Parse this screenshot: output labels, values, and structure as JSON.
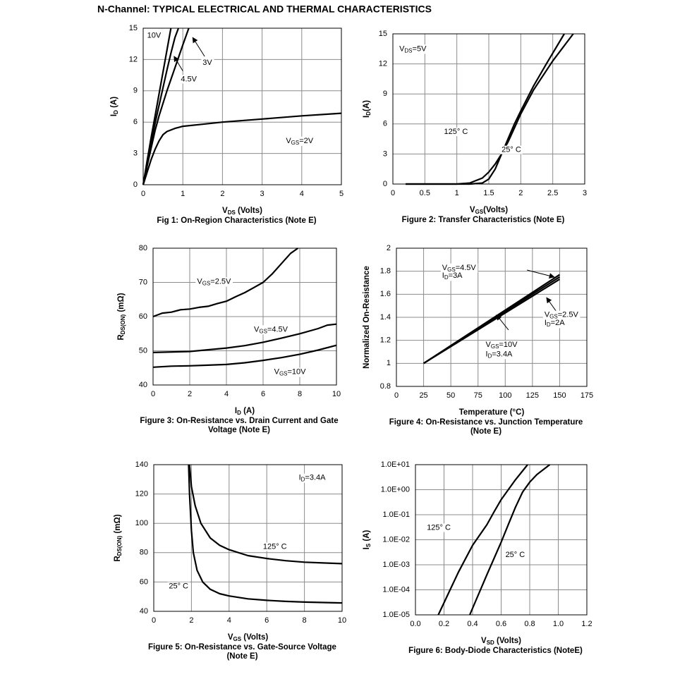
{
  "title": "N-Channel: TYPICAL ELECTRICAL AND THERMAL CHARACTERISTICS",
  "chart_data": [
    {
      "type": "line",
      "title": [
        "Fig 1: On-Region Characteristics (Note E)"
      ],
      "xlabel": [
        "V",
        "DS",
        " (Volts)"
      ],
      "ylabel": [
        "I",
        "D",
        " (A)"
      ],
      "xlim": [
        0,
        5
      ],
      "xticks": [
        0,
        1,
        2,
        3,
        4,
        5
      ],
      "ylim": [
        0,
        15
      ],
      "yticks": [
        0,
        3,
        6,
        9,
        12,
        15
      ],
      "grid": true,
      "series": [
        {
          "color": "#000000",
          "x": [
            0,
            0.1,
            0.2,
            0.3,
            0.4,
            0.5,
            0.6,
            0.7
          ],
          "values": [
            0,
            2.3,
            4.5,
            6.6,
            8.7,
            10.8,
            12.9,
            15
          ]
        },
        {
          "color": "#000000",
          "x": [
            0,
            0.1,
            0.2,
            0.3,
            0.4,
            0.5,
            0.6,
            0.7,
            0.8,
            0.89
          ],
          "values": [
            0,
            2,
            4,
            5.9,
            7.6,
            9.3,
            11,
            12.6,
            14.1,
            15
          ]
        },
        {
          "color": "#000000",
          "x": [
            0,
            0.1,
            0.2,
            0.3,
            0.4,
            0.6,
            0.8,
            1.0,
            1.15
          ],
          "values": [
            0,
            1.8,
            3.5,
            5.2,
            6.6,
            9,
            11.2,
            13.4,
            15
          ]
        },
        {
          "color": "#000000",
          "x": [
            0,
            0.1,
            0.2,
            0.3,
            0.4,
            0.5,
            0.6,
            0.8,
            1,
            1.5,
            2,
            3,
            4,
            5
          ],
          "values": [
            0,
            1.2,
            2.4,
            3.4,
            4.2,
            4.8,
            5.1,
            5.4,
            5.6,
            5.8,
            6.0,
            6.3,
            6.6,
            6.85
          ]
        }
      ],
      "annotations": [
        [
          "10V"
        ],
        [
          "3V"
        ],
        [
          "4.5V"
        ],
        [
          "V",
          "GS",
          "=2V"
        ]
      ]
    },
    {
      "type": "line",
      "title": [
        "Figure 2: Transfer Characteristics (Note E)"
      ],
      "xlabel": [
        "V",
        "GS",
        "(Volts)"
      ],
      "ylabel": [
        "I",
        "D",
        "(A)"
      ],
      "xlim": [
        0,
        3
      ],
      "xticks": [
        0,
        0.5,
        1,
        1.5,
        2,
        2.5,
        3
      ],
      "ylim": [
        0,
        15
      ],
      "yticks": [
        0,
        3,
        6,
        9,
        12,
        15
      ],
      "grid": true,
      "series": [
        {
          "color": "#000000",
          "x": [
            0.2,
            1.0,
            1.2,
            1.4,
            1.5,
            1.6,
            1.7,
            1.8,
            1.9,
            2.0,
            2.2,
            2.5,
            2.82
          ],
          "values": [
            0,
            0,
            0.1,
            0.6,
            1.2,
            2,
            3,
            4.2,
            5.6,
            7,
            9.4,
            12.3,
            15
          ]
        },
        {
          "color": "#000000",
          "x": [
            0.2,
            1.2,
            1.4,
            1.5,
            1.6,
            1.7,
            1.8,
            1.9,
            2.0,
            2.2,
            2.4,
            2.68
          ],
          "values": [
            0,
            0,
            0.1,
            0.5,
            1.5,
            3,
            4.5,
            6,
            7.3,
            9.8,
            12,
            15
          ]
        }
      ],
      "annotations": [
        [
          "V",
          "DS",
          "=5V"
        ],
        [
          "125° C"
        ],
        [
          "25° C"
        ]
      ]
    },
    {
      "type": "line",
      "title": [
        "Figure 3: On-Resistance vs. Drain Current and Gate",
        "Voltage (Note E)"
      ],
      "xlabel": [
        "I",
        "D",
        " (A)"
      ],
      "ylabel": [
        "R",
        "DS(ON)",
        " (mΩ)"
      ],
      "xlim": [
        0,
        10
      ],
      "xticks": [
        0,
        2,
        4,
        6,
        8,
        10
      ],
      "ylim": [
        40,
        80
      ],
      "yticks": [
        40,
        50,
        60,
        70,
        80
      ],
      "grid": true,
      "series": [
        {
          "color": "#000000",
          "x": [
            0,
            0.5,
            1,
            1.5,
            2,
            2.5,
            3,
            3.5,
            4,
            4.5,
            5,
            5.5,
            6,
            6.5,
            7,
            7.5,
            7.9
          ],
          "values": [
            60,
            61,
            61.3,
            62,
            62.2,
            62.7,
            63,
            63.8,
            64.5,
            65.8,
            67,
            68.5,
            70,
            72.5,
            75.5,
            78.5,
            80
          ]
        },
        {
          "color": "#000000",
          "x": [
            0,
            2,
            4,
            5,
            6,
            7,
            8,
            9,
            9.5,
            10
          ],
          "values": [
            49.5,
            49.8,
            50.8,
            51.5,
            52.5,
            53.7,
            55,
            56.5,
            57.5,
            57.8
          ]
        },
        {
          "color": "#000000",
          "x": [
            0,
            1,
            2,
            3,
            4,
            5,
            6,
            7,
            8,
            9,
            10
          ],
          "values": [
            45.2,
            45.5,
            45.6,
            45.8,
            46.0,
            46.5,
            47.2,
            48,
            49,
            50.2,
            51.6
          ]
        }
      ],
      "annotations": [
        [
          "V",
          "GS",
          "=2.5V"
        ],
        [
          "V",
          "GS",
          "=4.5V"
        ],
        [
          "V",
          "GS",
          "=10V"
        ]
      ]
    },
    {
      "type": "line",
      "title": [
        "Figure 4: On-Resistance vs. Junction Temperature",
        "(Note E)"
      ],
      "xlabel": [
        "Temperature (°C)"
      ],
      "ylabel": [
        "Normalized On-Resistance"
      ],
      "xlim": [
        0,
        175
      ],
      "xticks": [
        0,
        25,
        50,
        75,
        100,
        125,
        150,
        175
      ],
      "ylim": [
        0.8,
        2
      ],
      "yticks": [
        0.8,
        1,
        1.2,
        1.4,
        1.6,
        1.8,
        2
      ],
      "grid": true,
      "series": [
        {
          "color": "#000000",
          "x": [
            25,
            150
          ],
          "values": [
            1,
            1.77
          ]
        },
        {
          "color": "#000000",
          "x": [
            25,
            150
          ],
          "values": [
            1,
            1.75
          ]
        },
        {
          "color": "#000000",
          "x": [
            25,
            150
          ],
          "values": [
            1,
            1.73
          ]
        }
      ],
      "annotations": [
        [
          "V",
          "GS",
          "=4.5V"
        ],
        [
          "I",
          "D",
          "=3A"
        ],
        [
          "V",
          "GS",
          "=2.5V"
        ],
        [
          "I",
          "D",
          "=2A"
        ],
        [
          "V",
          "GS",
          "=10V"
        ],
        [
          "I",
          "D",
          "=3.4A"
        ]
      ]
    },
    {
      "type": "line",
      "title": [
        "Figure 5: On-Resistance vs. Gate-Source Voltage",
        "(Note E)"
      ],
      "xlabel": [
        "V",
        "GS",
        " (Volts)"
      ],
      "ylabel": [
        "R",
        "DS(ON)",
        " (mΩ)"
      ],
      "xlim": [
        0,
        10
      ],
      "xticks": [
        0,
        2,
        4,
        6,
        8,
        10
      ],
      "ylim": [
        40,
        140
      ],
      "yticks": [
        40,
        60,
        80,
        100,
        120,
        140
      ],
      "grid": true,
      "series": [
        {
          "color": "#000000",
          "x": [
            1.9,
            2,
            2.2,
            2.5,
            3,
            3.5,
            4,
            5,
            6,
            7,
            8,
            9,
            10
          ],
          "values": [
            140,
            125,
            112,
            100,
            90,
            85,
            82,
            78,
            76,
            74.5,
            73.5,
            73,
            72.5
          ]
        },
        {
          "color": "#000000",
          "x": [
            1.85,
            1.9,
            2,
            2.1,
            2.3,
            2.6,
            3,
            3.5,
            4,
            5,
            6,
            7,
            8,
            9,
            10
          ],
          "values": [
            140,
            120,
            95,
            80,
            68,
            60,
            55,
            52,
            50.5,
            48.5,
            47.5,
            46.8,
            46.3,
            46,
            45.7
          ]
        }
      ],
      "annotations": [
        [
          "I",
          "D",
          "=3.4A"
        ],
        [
          "125° C"
        ],
        [
          "25° C"
        ]
      ]
    },
    {
      "type": "line",
      "title": [
        "Figure 6: Body-Diode Characteristics (NoteE)"
      ],
      "xlabel": [
        "V",
        "SD",
        " (Volts)"
      ],
      "ylabel": [
        "I",
        "S",
        " (A)"
      ],
      "xlim": [
        0,
        1.2
      ],
      "xticks": [
        {
          "value": 0,
          "label": "0.0"
        },
        0.2,
        0.4,
        0.6,
        0.8,
        {
          "value": 1,
          "label": "1.0"
        },
        1.2
      ],
      "ylim": [
        1e-05,
        10
      ],
      "ylog": true,
      "yticks": [
        {
          "value": 1e-05,
          "label": "1.0E-05"
        },
        {
          "value": 0.0001,
          "label": "1.0E-04"
        },
        {
          "value": 0.001,
          "label": "1.0E-03"
        },
        {
          "value": 0.01,
          "label": "1.0E-02"
        },
        {
          "value": 0.1,
          "label": "1.0E-01"
        },
        {
          "value": 1,
          "label": "1.0E+00"
        },
        {
          "value": 10,
          "label": "1.0E+01"
        }
      ],
      "grid": true,
      "series": [
        {
          "color": "#000000",
          "x": [
            0.16,
            0.3,
            0.4,
            0.5,
            0.55,
            0.6,
            0.65,
            0.7,
            0.785
          ],
          "values": [
            1e-05,
            0.0005,
            0.006,
            0.04,
            0.13,
            0.4,
            1,
            2.5,
            10
          ]
        },
        {
          "color": "#000000",
          "x": [
            0.38,
            0.5,
            0.6,
            0.65,
            0.7,
            0.75,
            0.8,
            0.85,
            0.94
          ],
          "values": [
            1e-05,
            0.0004,
            0.008,
            0.04,
            0.2,
            0.8,
            2,
            4,
            10
          ]
        }
      ],
      "annotations": [
        [
          "125° C"
        ],
        [
          "25° C"
        ]
      ]
    }
  ]
}
